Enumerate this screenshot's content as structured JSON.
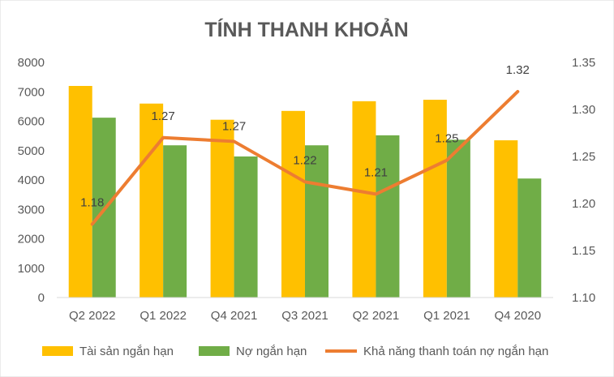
{
  "chart_data": {
    "type": "bar",
    "title": "TÍNH THANH KHOẢN",
    "categories": [
      "Q2 2022",
      "Q1 2022",
      "Q4 2021",
      "Q3 2021",
      "Q2 2021",
      "Q1 2021",
      "Q4 2020"
    ],
    "series": [
      {
        "name": "Tài sản ngắn hạn",
        "type": "bar",
        "axis": "left",
        "color": "#FFC000",
        "values": [
          7200,
          6600,
          6050,
          6350,
          6680,
          6730,
          5350
        ]
      },
      {
        "name": "Nợ ngắn hạn",
        "type": "bar",
        "axis": "left",
        "color": "#70AD47",
        "values": [
          6120,
          5180,
          4800,
          5180,
          5520,
          5370,
          4050
        ]
      },
      {
        "name": "Khả năng thanh toán nợ ngắn hạn",
        "type": "line",
        "axis": "right",
        "color": "#ED7D31",
        "values": [
          1.18,
          1.27,
          1.27,
          1.22,
          1.21,
          1.25,
          1.32
        ],
        "plotted": [
          1.178,
          1.27,
          1.266,
          1.223,
          1.21,
          1.246,
          1.319
        ],
        "labels": [
          "1.18",
          "1.27",
          "1.27",
          "1.22",
          "1.21",
          "1.25",
          "1.32"
        ]
      }
    ],
    "y_left": {
      "min": 0,
      "max": 8000,
      "ticks": [
        "0",
        "1000",
        "2000",
        "3000",
        "4000",
        "5000",
        "6000",
        "7000",
        "8000"
      ]
    },
    "y_right": {
      "min": 1.1,
      "max": 1.35,
      "ticks": [
        "1.10",
        "1.15",
        "1.20",
        "1.25",
        "1.30",
        "1.35"
      ]
    },
    "grid": false,
    "legend": "bottom"
  }
}
